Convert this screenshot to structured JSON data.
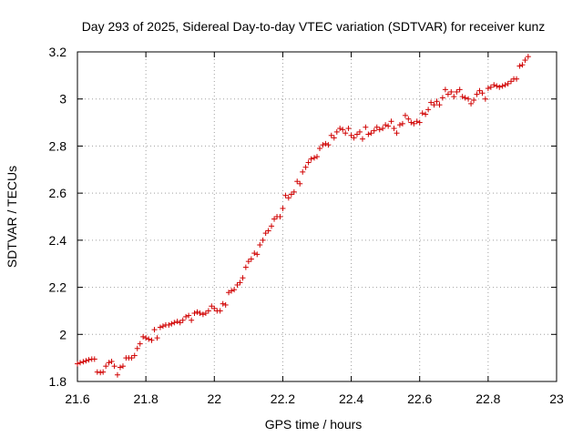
{
  "chart_data": {
    "type": "scatter",
    "title": "Day 293 of 2025, Sidereal Day-to-day VTEC variation (SDTVAR) for receiver kunz",
    "xlabel": "GPS time / hours",
    "ylabel": "SDTVAR / TECUs",
    "xlim": [
      21.6,
      23.0
    ],
    "ylim": [
      1.8,
      3.2
    ],
    "xticks": [
      "21.6",
      "21.8",
      "22",
      "22.2",
      "22.4",
      "22.6",
      "22.8",
      "23"
    ],
    "yticks": [
      "1.8",
      "2",
      "2.2",
      "2.4",
      "2.6",
      "2.8",
      "3",
      "3.2"
    ],
    "grid": true,
    "marker": "+",
    "color": "#d00000",
    "series": [
      {
        "name": "SDTVAR",
        "points": [
          [
            21.6,
            1.875
          ],
          [
            21.608,
            1.88
          ],
          [
            21.617,
            1.884
          ],
          [
            21.625,
            1.888
          ],
          [
            21.633,
            1.892
          ],
          [
            21.642,
            1.895
          ],
          [
            21.65,
            1.895
          ],
          [
            21.658,
            1.84
          ],
          [
            21.667,
            1.838
          ],
          [
            21.675,
            1.84
          ],
          [
            21.683,
            1.865
          ],
          [
            21.692,
            1.88
          ],
          [
            21.7,
            1.885
          ],
          [
            21.708,
            1.865
          ],
          [
            21.717,
            1.828
          ],
          [
            21.725,
            1.86
          ],
          [
            21.733,
            1.865
          ],
          [
            21.742,
            1.9
          ],
          [
            21.75,
            1.9
          ],
          [
            21.758,
            1.9
          ],
          [
            21.767,
            1.91
          ],
          [
            21.775,
            1.94
          ],
          [
            21.783,
            1.96
          ],
          [
            21.792,
            1.99
          ],
          [
            21.8,
            1.985
          ],
          [
            21.808,
            1.98
          ],
          [
            21.817,
            1.975
          ],
          [
            21.825,
            2.02
          ],
          [
            21.833,
            1.985
          ],
          [
            21.842,
            2.03
          ],
          [
            21.85,
            2.035
          ],
          [
            21.858,
            2.04
          ],
          [
            21.867,
            2.04
          ],
          [
            21.875,
            2.045
          ],
          [
            21.883,
            2.05
          ],
          [
            21.892,
            2.055
          ],
          [
            21.9,
            2.05
          ],
          [
            21.908,
            2.06
          ],
          [
            21.917,
            2.075
          ],
          [
            21.925,
            2.08
          ],
          [
            21.933,
            2.06
          ],
          [
            21.942,
            2.09
          ],
          [
            21.95,
            2.095
          ],
          [
            21.958,
            2.09
          ],
          [
            21.967,
            2.085
          ],
          [
            21.975,
            2.09
          ],
          [
            21.983,
            2.1
          ],
          [
            21.992,
            2.12
          ],
          [
            22.0,
            2.11
          ],
          [
            22.008,
            2.1
          ],
          [
            22.017,
            2.1
          ],
          [
            22.025,
            2.13
          ],
          [
            22.033,
            2.125
          ],
          [
            22.042,
            2.178
          ],
          [
            22.05,
            2.185
          ],
          [
            22.058,
            2.19
          ],
          [
            22.067,
            2.21
          ],
          [
            22.075,
            2.22
          ],
          [
            22.083,
            2.24
          ],
          [
            22.092,
            2.285
          ],
          [
            22.1,
            2.31
          ],
          [
            22.108,
            2.32
          ],
          [
            22.117,
            2.345
          ],
          [
            22.125,
            2.34
          ],
          [
            22.133,
            2.38
          ],
          [
            22.142,
            2.4
          ],
          [
            22.15,
            2.43
          ],
          [
            22.158,
            2.44
          ],
          [
            22.167,
            2.46
          ],
          [
            22.175,
            2.49
          ],
          [
            22.183,
            2.5
          ],
          [
            22.192,
            2.5
          ],
          [
            22.2,
            2.535
          ],
          [
            22.208,
            2.59
          ],
          [
            22.217,
            2.58
          ],
          [
            22.225,
            2.595
          ],
          [
            22.233,
            2.605
          ],
          [
            22.242,
            2.65
          ],
          [
            22.25,
            2.64
          ],
          [
            22.258,
            2.69
          ],
          [
            22.267,
            2.71
          ],
          [
            22.275,
            2.73
          ],
          [
            22.283,
            2.745
          ],
          [
            22.292,
            2.75
          ],
          [
            22.3,
            2.755
          ],
          [
            22.308,
            2.79
          ],
          [
            22.317,
            2.805
          ],
          [
            22.325,
            2.81
          ],
          [
            22.333,
            2.805
          ],
          [
            22.342,
            2.845
          ],
          [
            22.35,
            2.835
          ],
          [
            22.358,
            2.86
          ],
          [
            22.367,
            2.875
          ],
          [
            22.375,
            2.87
          ],
          [
            22.383,
            2.855
          ],
          [
            22.392,
            2.875
          ],
          [
            22.4,
            2.845
          ],
          [
            22.408,
            2.835
          ],
          [
            22.417,
            2.85
          ],
          [
            22.425,
            2.86
          ],
          [
            22.433,
            2.83
          ],
          [
            22.442,
            2.88
          ],
          [
            22.45,
            2.85
          ],
          [
            22.458,
            2.855
          ],
          [
            22.467,
            2.865
          ],
          [
            22.475,
            2.88
          ],
          [
            22.483,
            2.87
          ],
          [
            22.492,
            2.875
          ],
          [
            22.5,
            2.89
          ],
          [
            22.508,
            2.885
          ],
          [
            22.517,
            2.905
          ],
          [
            22.525,
            2.875
          ],
          [
            22.533,
            2.855
          ],
          [
            22.542,
            2.89
          ],
          [
            22.55,
            2.895
          ],
          [
            22.558,
            2.93
          ],
          [
            22.567,
            2.915
          ],
          [
            22.575,
            2.9
          ],
          [
            22.583,
            2.895
          ],
          [
            22.592,
            2.905
          ],
          [
            22.6,
            2.9
          ],
          [
            22.608,
            2.94
          ],
          [
            22.617,
            2.935
          ],
          [
            22.625,
            2.955
          ],
          [
            22.633,
            2.985
          ],
          [
            22.642,
            2.975
          ],
          [
            22.65,
            2.99
          ],
          [
            22.658,
            2.975
          ],
          [
            22.667,
            3.005
          ],
          [
            22.675,
            3.04
          ],
          [
            22.683,
            3.02
          ],
          [
            22.692,
            3.03
          ],
          [
            22.7,
            3.01
          ],
          [
            22.708,
            3.03
          ],
          [
            22.717,
            3.04
          ],
          [
            22.725,
            3.01
          ],
          [
            22.733,
            3.005
          ],
          [
            22.742,
            3.0
          ],
          [
            22.75,
            2.98
          ],
          [
            22.758,
            2.995
          ],
          [
            22.767,
            3.02
          ],
          [
            22.775,
            3.035
          ],
          [
            22.783,
            3.025
          ],
          [
            22.792,
            3.0
          ],
          [
            22.8,
            3.045
          ],
          [
            22.808,
            3.05
          ],
          [
            22.817,
            3.06
          ],
          [
            22.825,
            3.055
          ],
          [
            22.833,
            3.05
          ],
          [
            22.842,
            3.055
          ],
          [
            22.85,
            3.06
          ],
          [
            22.858,
            3.065
          ],
          [
            22.867,
            3.075
          ],
          [
            22.875,
            3.085
          ],
          [
            22.883,
            3.085
          ],
          [
            22.892,
            3.14
          ],
          [
            22.9,
            3.145
          ],
          [
            22.908,
            3.165
          ],
          [
            22.917,
            3.18
          ]
        ]
      }
    ]
  }
}
